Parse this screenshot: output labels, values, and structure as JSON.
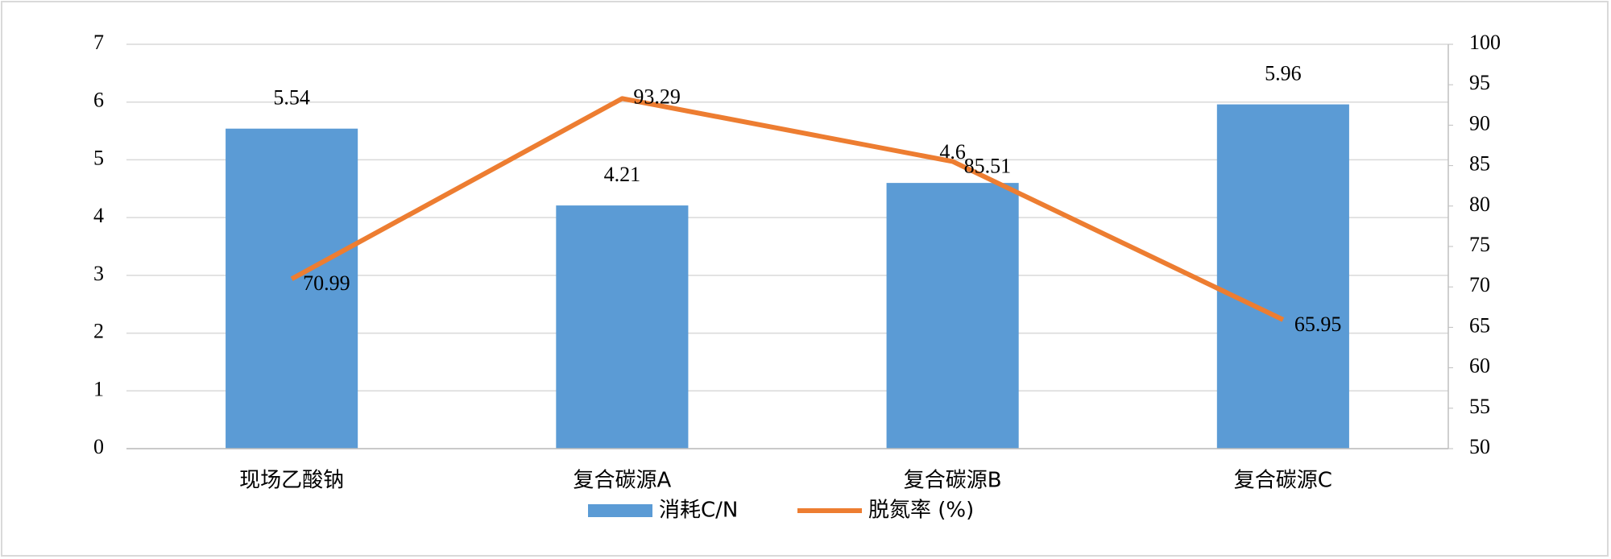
{
  "chart_data": {
    "type": "bar-line",
    "categories": [
      "现场乙酸钠",
      "复合碳源A",
      "复合碳源B",
      "复合碳源C"
    ],
    "series": [
      {
        "name": "消耗C/N",
        "color": "#5b9bd5",
        "type": "bar",
        "values": [
          5.54,
          4.21,
          4.6,
          5.96
        ]
      },
      {
        "name": "脱氮率 (%)",
        "color": "#ed7d31",
        "type": "line",
        "axis": "y2",
        "values": [
          70.99,
          93.29,
          85.51,
          65.95
        ]
      }
    ],
    "ylim": [
      0,
      7
    ],
    "yticks": [
      0,
      1,
      2,
      3,
      4,
      5,
      6,
      7
    ],
    "y2lim": [
      50,
      100
    ],
    "y2ticks": [
      50,
      55,
      60,
      65,
      70,
      75,
      80,
      85,
      90,
      95,
      100
    ],
    "grid": true,
    "legend": "bottom"
  }
}
